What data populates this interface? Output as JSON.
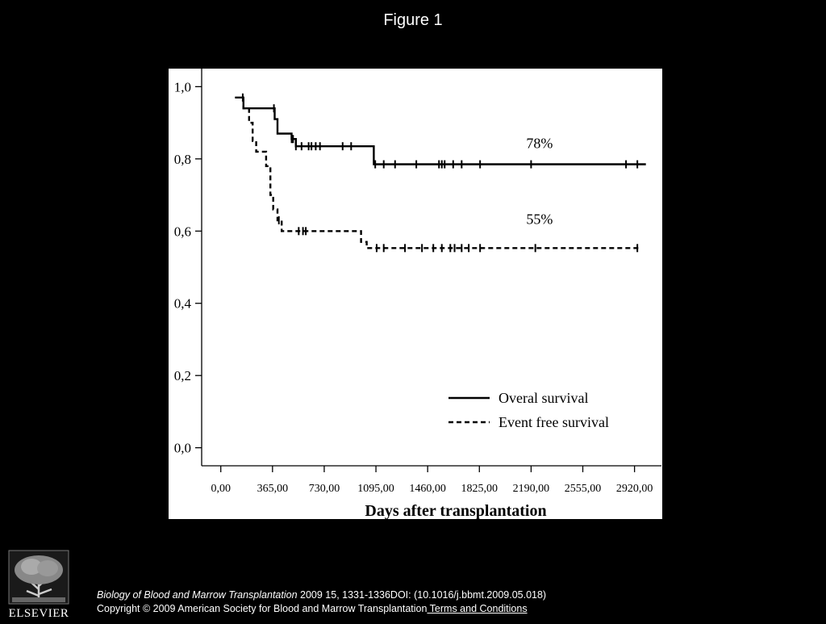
{
  "slide": {
    "title": "Figure 1"
  },
  "chart_data": {
    "type": "line",
    "title": "",
    "xlabel": "Days after transplantation",
    "ylabel": "",
    "xlim": [
      -135,
      3110
    ],
    "ylim": [
      -0.05,
      1.05
    ],
    "x_ticks": [
      0,
      365,
      730,
      1095,
      1460,
      1825,
      2190,
      2555,
      2920
    ],
    "x_tick_labels": [
      "0,00",
      "365,00",
      "730,00",
      "1095,00",
      "1460,00",
      "1825,00",
      "2190,00",
      "2555,00",
      "2920,00"
    ],
    "y_ticks": [
      0.0,
      0.2,
      0.4,
      0.6,
      0.8,
      1.0
    ],
    "y_tick_labels": [
      "0,0",
      "0,2",
      "0,4",
      "0,6",
      "0,8",
      "1,0"
    ],
    "grid": false,
    "legend_position": "bottom-right",
    "series": [
      {
        "name": "Overal survival",
        "style": "solid",
        "step_points": [
          [
            100,
            0.97
          ],
          [
            160,
            0.97
          ],
          [
            160,
            0.94
          ],
          [
            380,
            0.94
          ],
          [
            380,
            0.91
          ],
          [
            400,
            0.91
          ],
          [
            400,
            0.87
          ],
          [
            500,
            0.87
          ],
          [
            500,
            0.855
          ],
          [
            530,
            0.855
          ],
          [
            530,
            0.835
          ],
          [
            1080,
            0.835
          ],
          [
            1080,
            0.785
          ],
          [
            3000,
            0.785
          ]
        ],
        "censor_x": [
          155,
          375,
          500,
          510,
          530,
          570,
          620,
          640,
          670,
          700,
          860,
          920,
          1090,
          1150,
          1230,
          1380,
          1540,
          1560,
          1580,
          1640,
          1700,
          1830,
          2190,
          2860,
          2940
        ]
      },
      {
        "name": "Event free survival",
        "style": "dashed",
        "step_points": [
          [
            160,
            0.97
          ],
          [
            160,
            0.94
          ],
          [
            200,
            0.94
          ],
          [
            200,
            0.9
          ],
          [
            225,
            0.9
          ],
          [
            225,
            0.85
          ],
          [
            250,
            0.85
          ],
          [
            250,
            0.82
          ],
          [
            320,
            0.82
          ],
          [
            320,
            0.78
          ],
          [
            350,
            0.78
          ],
          [
            350,
            0.7
          ],
          [
            370,
            0.7
          ],
          [
            370,
            0.66
          ],
          [
            400,
            0.66
          ],
          [
            400,
            0.63
          ],
          [
            430,
            0.63
          ],
          [
            430,
            0.6
          ],
          [
            990,
            0.6
          ],
          [
            990,
            0.57
          ],
          [
            1030,
            0.57
          ],
          [
            1030,
            0.553
          ],
          [
            2950,
            0.553
          ]
        ],
        "censor_x": [
          410,
          550,
          580,
          600,
          1100,
          1150,
          1300,
          1420,
          1500,
          1560,
          1620,
          1650,
          1700,
          1750,
          1830,
          2220,
          2940
        ]
      }
    ],
    "annotations": [
      {
        "text": "78%",
        "x": 2250,
        "y": 0.83
      },
      {
        "text": "55%",
        "x": 2250,
        "y": 0.62
      }
    ]
  },
  "footer": {
    "journal": "Biology of Blood and Marrow Transplantation",
    "citation_rest": " 2009 15, 1331-1336DOI: (10.1016/j.bbmt.2009.05.018)",
    "copyright": "Copyright © 2009 American Society for Blood and Marrow Transplantation",
    "terms_link": " Terms and Conditions",
    "logo_text": "ELSEVIER"
  }
}
